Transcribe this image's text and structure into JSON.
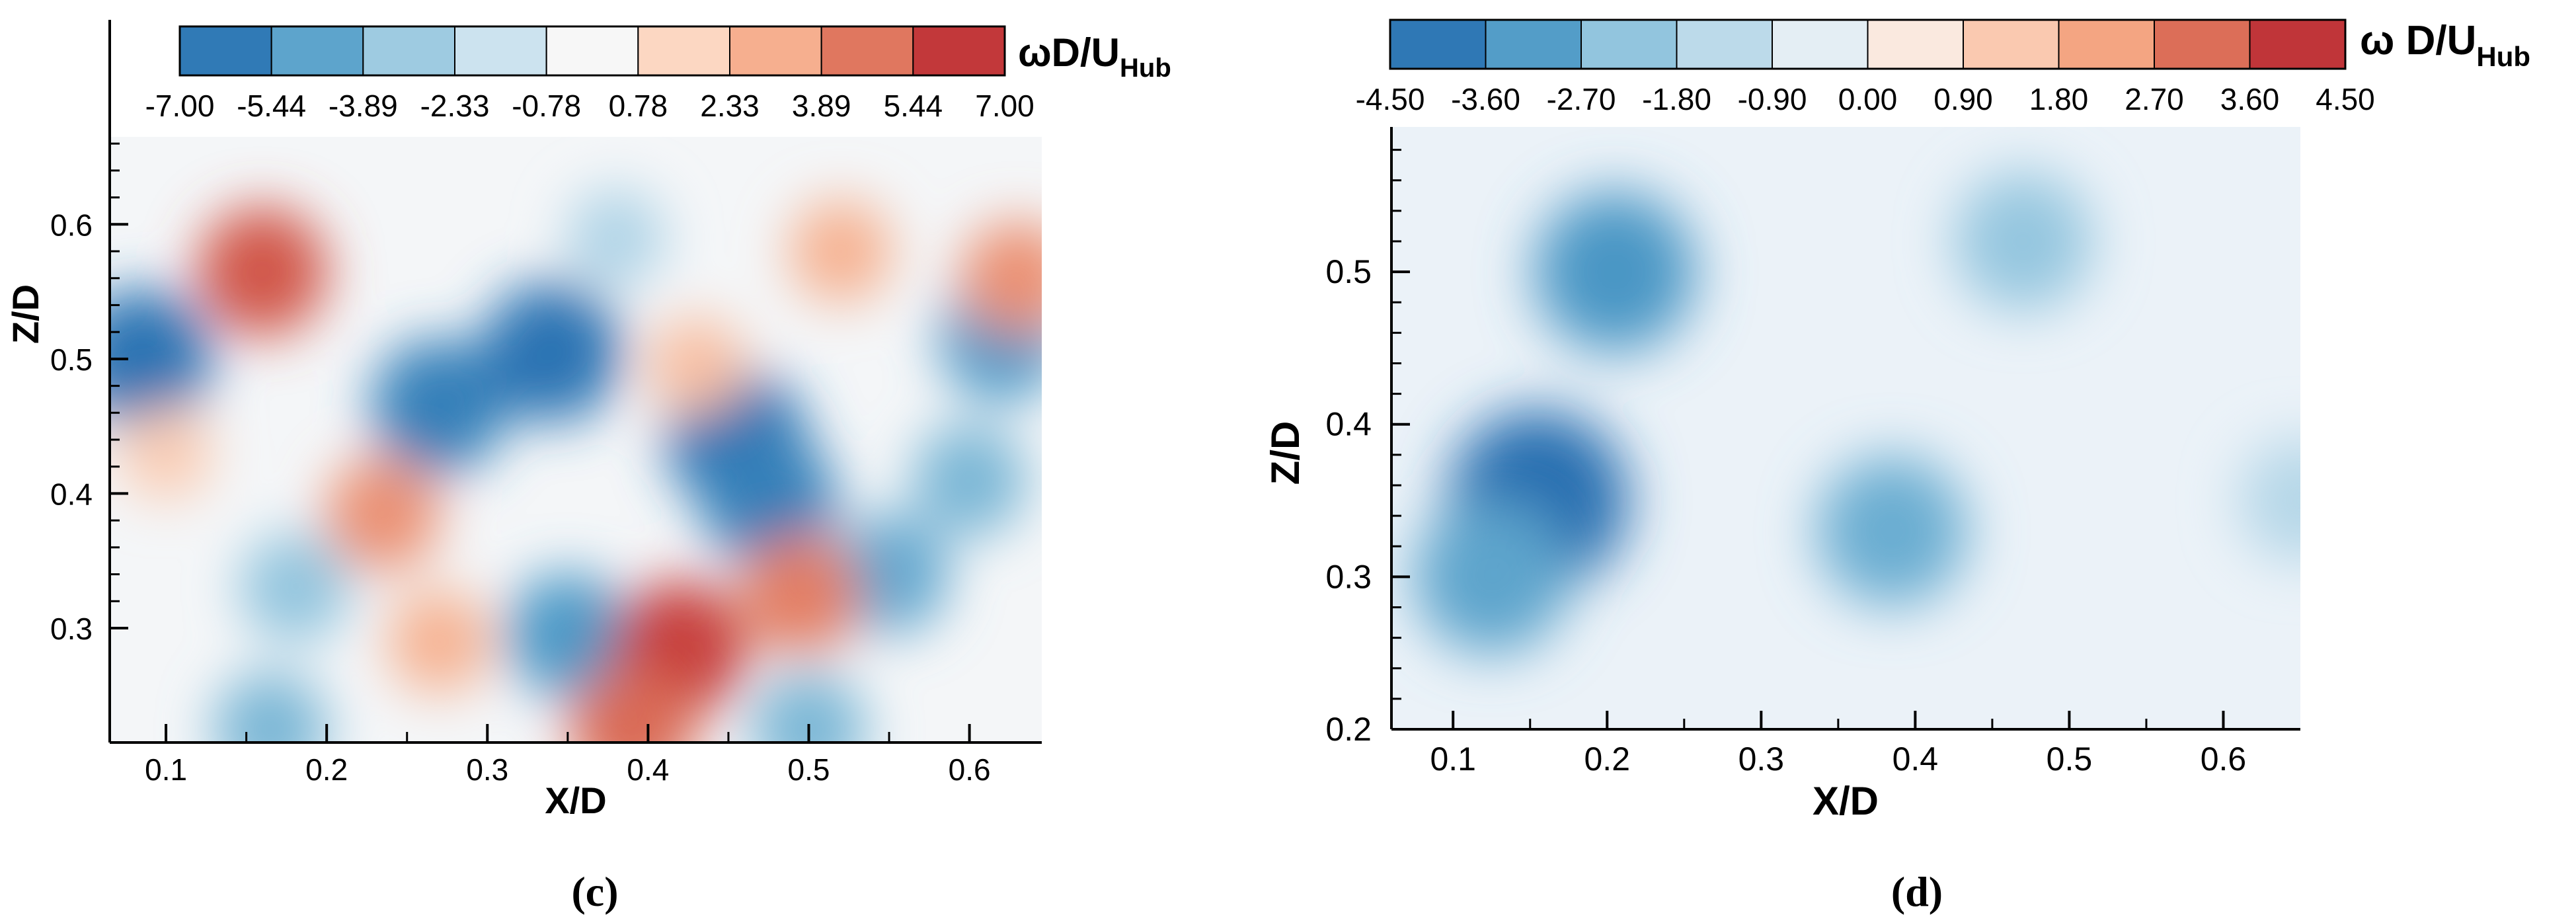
{
  "chart_data": [
    {
      "type": "heatmap",
      "panel_label": "(c)",
      "xlabel": "X/D",
      "ylabel": "Z/D",
      "xlim": [
        0.065,
        0.645
      ],
      "ylim": [
        0.215,
        0.665
      ],
      "x_ticks": [
        "0.1",
        "0.2",
        "0.3",
        "0.4",
        "0.5",
        "0.6"
      ],
      "y_ticks": [
        "0.3",
        "0.4",
        "0.5",
        "0.6"
      ],
      "colorbar": {
        "title_main": "ωD/U",
        "title_sub": "Hub",
        "range": [
          -7.0,
          7.0
        ],
        "ticks": [
          "-7.00",
          "-5.44",
          "-3.89",
          "-2.33",
          "-0.78",
          "0.78",
          "2.33",
          "3.89",
          "5.44",
          "7.00"
        ]
      },
      "features": [
        {
          "x": 0.16,
          "y": 0.565,
          "value": 5.5
        },
        {
          "x": 0.085,
          "y": 0.5,
          "value": -6.5
        },
        {
          "x": 0.27,
          "y": 0.465,
          "value": -6.0
        },
        {
          "x": 0.34,
          "y": 0.505,
          "value": -6.5
        },
        {
          "x": 0.455,
          "y": 0.44,
          "value": -6.5
        },
        {
          "x": 0.475,
          "y": 0.395,
          "value": -6.0
        },
        {
          "x": 0.62,
          "y": 0.515,
          "value": -5.0
        },
        {
          "x": 0.6,
          "y": 0.41,
          "value": -4.0
        },
        {
          "x": 0.55,
          "y": 0.34,
          "value": -4.5
        },
        {
          "x": 0.35,
          "y": 0.295,
          "value": -5.0
        },
        {
          "x": 0.18,
          "y": 0.33,
          "value": -3.5
        },
        {
          "x": 0.42,
          "y": 0.285,
          "value": 6.0
        },
        {
          "x": 0.235,
          "y": 0.385,
          "value": 4.0
        },
        {
          "x": 0.495,
          "y": 0.325,
          "value": 4.5
        },
        {
          "x": 0.27,
          "y": 0.29,
          "value": 3.0
        },
        {
          "x": 0.39,
          "y": 0.225,
          "value": 5.0
        },
        {
          "x": 0.52,
          "y": 0.58,
          "value": 3.0
        },
        {
          "x": 0.63,
          "y": 0.56,
          "value": 4.0
        },
        {
          "x": 0.165,
          "y": 0.225,
          "value": -4.0
        },
        {
          "x": 0.5,
          "y": 0.225,
          "value": -4.0
        },
        {
          "x": 0.38,
          "y": 0.59,
          "value": -2.5
        },
        {
          "x": 0.43,
          "y": 0.495,
          "value": 2.5
        },
        {
          "x": 0.1,
          "y": 0.43,
          "value": 2.0
        }
      ]
    },
    {
      "type": "heatmap",
      "panel_label": "(d)",
      "xlabel": "X/D",
      "ylabel": "Z/D",
      "xlim": [
        0.06,
        0.65
      ],
      "ylim": [
        0.2,
        0.595
      ],
      "x_ticks": [
        "0.1",
        "0.2",
        "0.3",
        "0.4",
        "0.5",
        "0.6"
      ],
      "y_ticks": [
        "0.2",
        "0.3",
        "0.4",
        "0.5"
      ],
      "colorbar": {
        "title_main": "ω D/U",
        "title_sub": "Hub",
        "range": [
          -4.5,
          4.5
        ],
        "ticks": [
          "-4.50",
          "-3.60",
          "-2.70",
          "-1.80",
          "-0.90",
          "0.00",
          "0.90",
          "1.80",
          "2.70",
          "3.60",
          "4.50"
        ]
      },
      "features": [
        {
          "x": 0.155,
          "y": 0.35,
          "value": -4.3
        },
        {
          "x": 0.125,
          "y": 0.3,
          "value": -3.0
        },
        {
          "x": 0.205,
          "y": 0.5,
          "value": -3.3
        },
        {
          "x": 0.385,
          "y": 0.33,
          "value": -2.8
        },
        {
          "x": 0.47,
          "y": 0.52,
          "value": -2.2
        },
        {
          "x": 0.65,
          "y": 0.35,
          "value": -1.5
        }
      ]
    }
  ]
}
